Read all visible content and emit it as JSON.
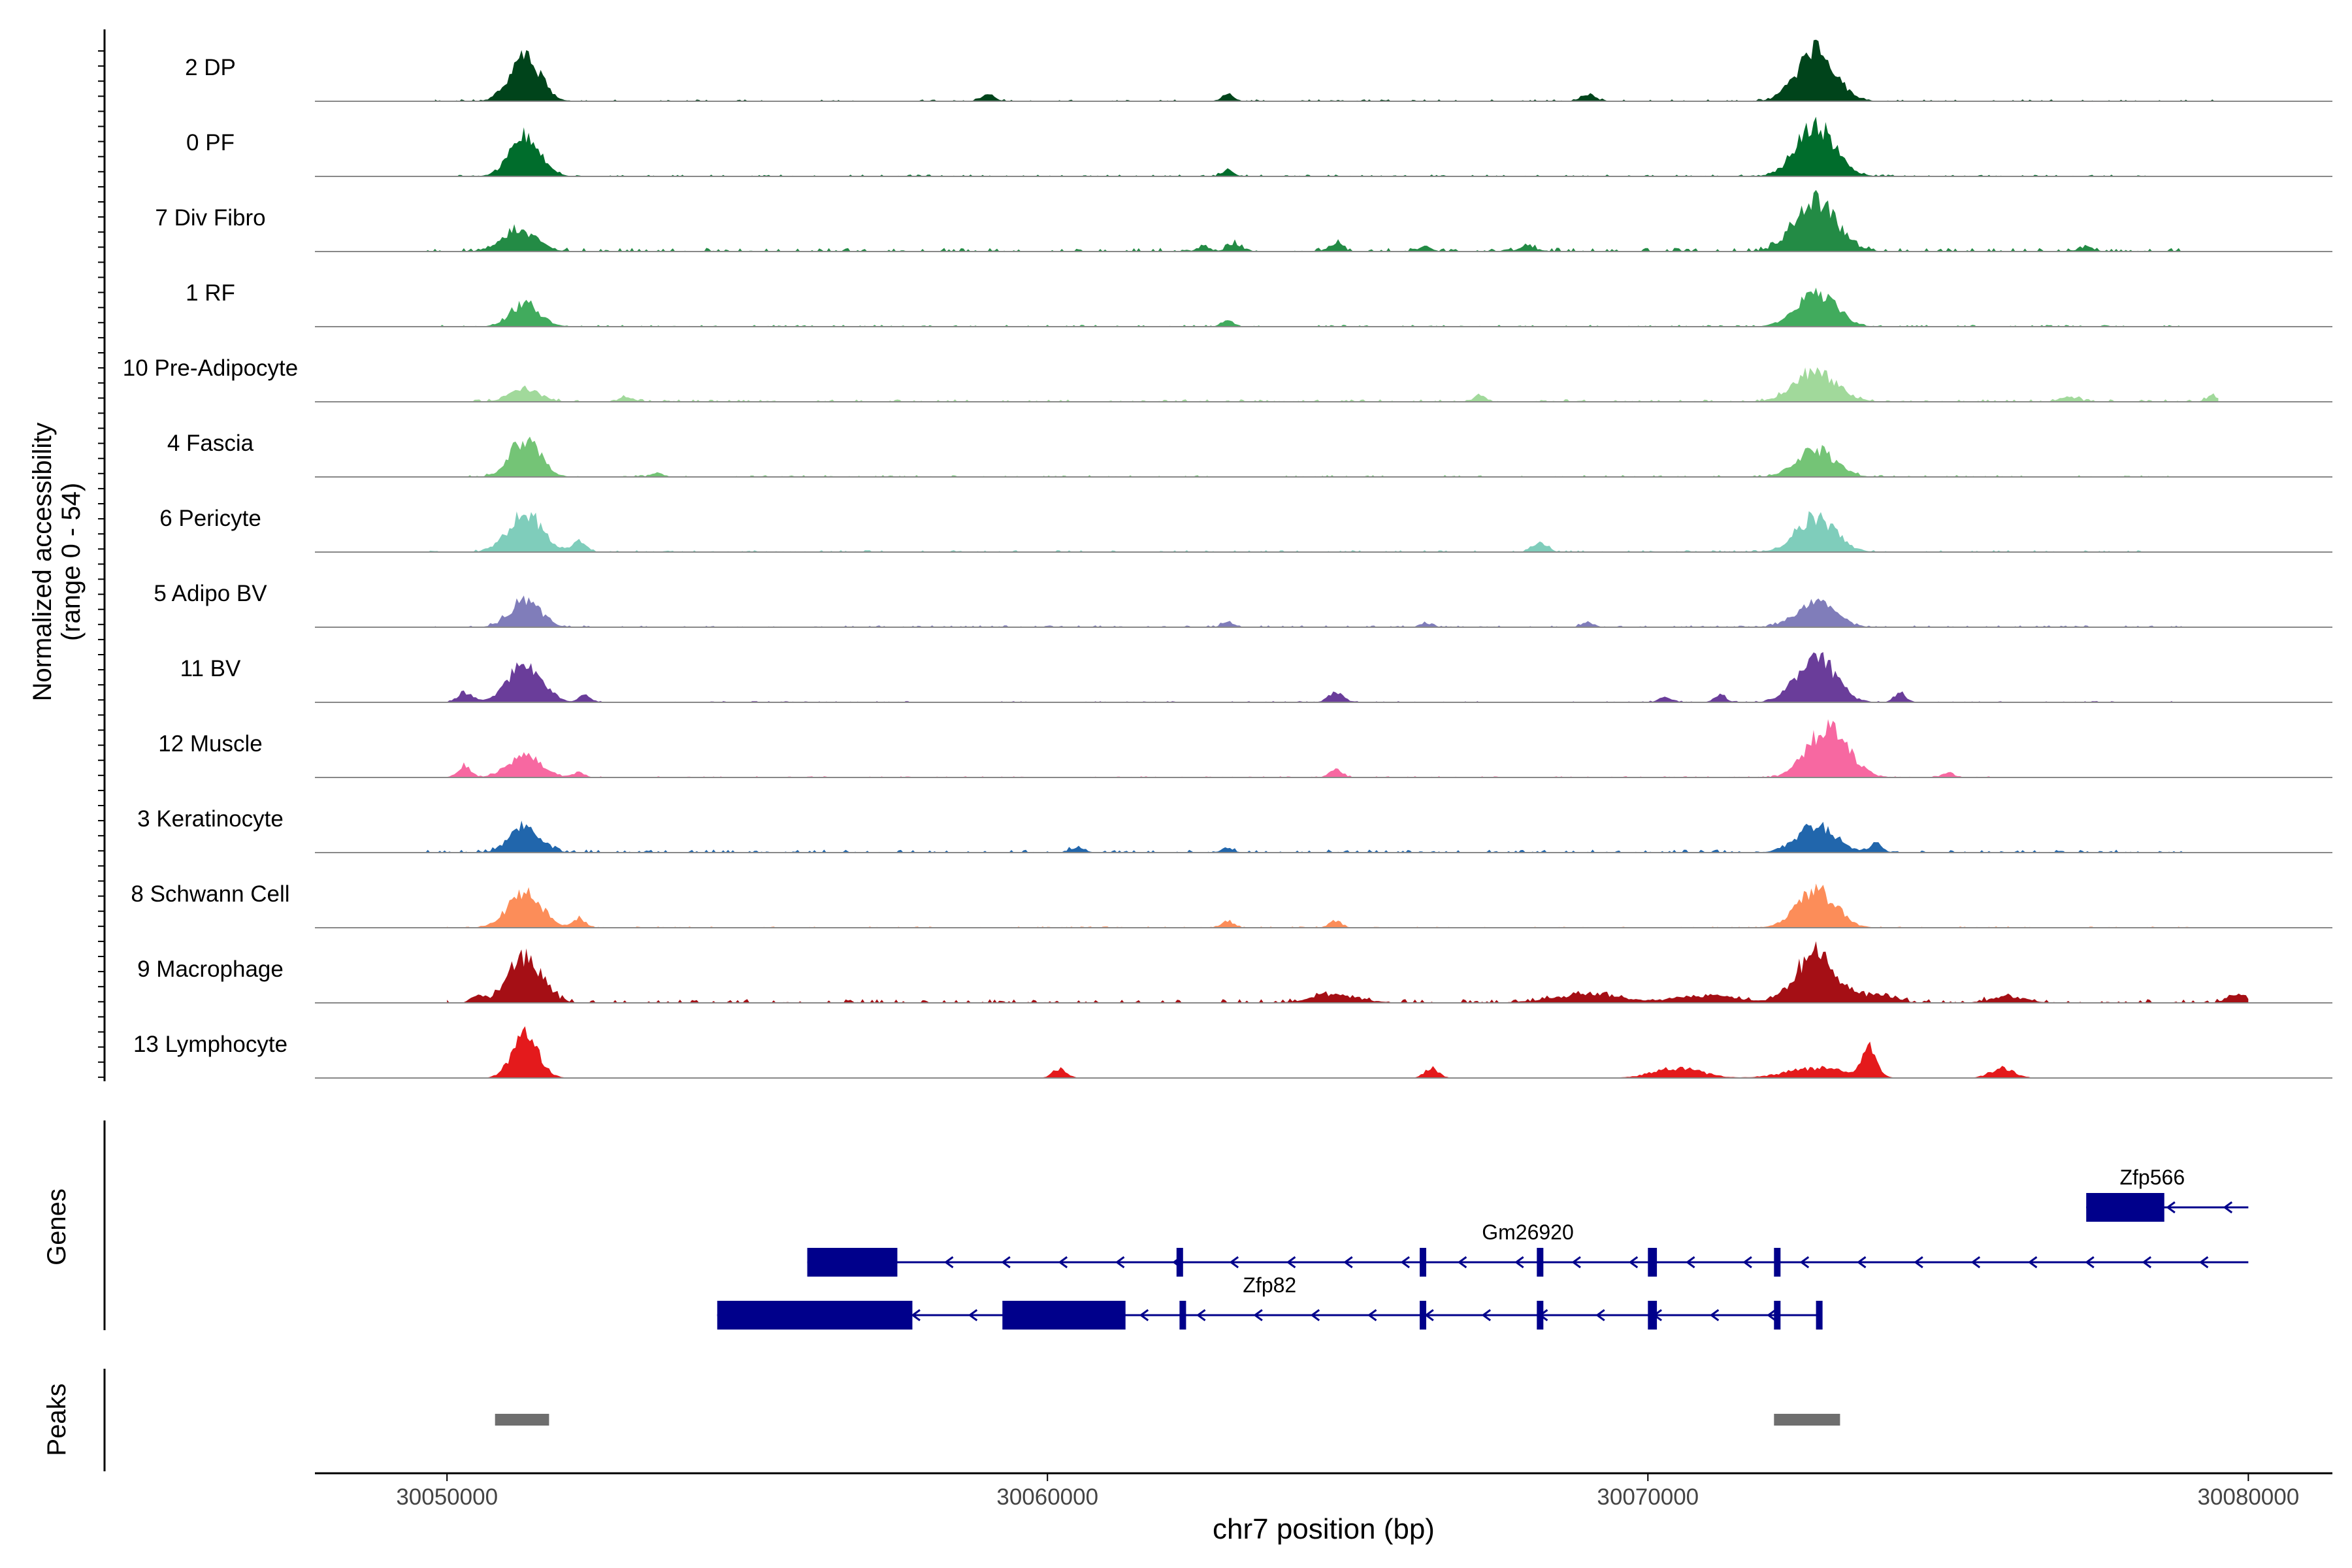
{
  "chart_data": {
    "type": "area",
    "title": "",
    "ylabel_line1": "Normalized accessibility",
    "ylabel_line2": "(range 0 - 54)",
    "genes_label": "Genes",
    "peaks_label": "Peaks",
    "xlabel": "chr7 position (bp)",
    "xlim": [
      30047800,
      30081400
    ],
    "ylim": [
      0,
      54
    ],
    "x_ticks": [
      30050000,
      30060000,
      30070000,
      30080000
    ],
    "x_tick_labels": [
      "30050000",
      "30060000",
      "30070000",
      "30080000"
    ],
    "tracks": [
      {
        "name": "2 DP",
        "color": "#00441b",
        "max": 40,
        "peaks": [
          [
            30051300,
            16,
            0.95,
            250
          ],
          [
            30072800,
            30,
            1.0,
            320
          ],
          [
            30059000,
            4,
            0.12,
            120
          ],
          [
            30063000,
            5,
            0.15,
            100
          ],
          [
            30069000,
            5,
            0.15,
            120
          ]
        ],
        "noise": 0.03,
        "extent": [
          30049800,
          30079500
        ]
      },
      {
        "name": "0 PF",
        "color": "#006d2c",
        "max": 40,
        "peaks": [
          [
            30051300,
            16,
            0.85,
            250
          ],
          [
            30072800,
            30,
            1.0,
            320
          ],
          [
            30063000,
            5,
            0.12,
            100
          ]
        ],
        "noise": 0.03,
        "extent": [
          30049800,
          30078500
        ]
      },
      {
        "name": "7 Div Fibro",
        "color": "#238b45",
        "max": 40,
        "peaks": [
          [
            30051200,
            16,
            0.45,
            280
          ],
          [
            30072800,
            33,
            1.0,
            350
          ],
          [
            30062600,
            5,
            0.12,
            100
          ],
          [
            30063100,
            6,
            0.15,
            120
          ],
          [
            30064800,
            5,
            0.17,
            120
          ],
          [
            30066300,
            4,
            0.1,
            100
          ],
          [
            30068000,
            5,
            0.1,
            150
          ],
          [
            30077300,
            4,
            0.1,
            120
          ]
        ],
        "noise": 0.06,
        "extent": [
          30049600,
          30079000
        ]
      },
      {
        "name": "1 RF",
        "color": "#41ab5d",
        "max": 40,
        "peaks": [
          [
            30051300,
            16,
            0.45,
            250
          ],
          [
            30072800,
            30,
            0.7,
            320
          ],
          [
            30063000,
            5,
            0.12,
            100
          ]
        ],
        "noise": 0.03,
        "extent": [
          30049800,
          30079000
        ]
      },
      {
        "name": "10 Pre-Adipocyte",
        "color": "#a1d99b",
        "max": 40,
        "peaks": [
          [
            30051300,
            14,
            0.25,
            250
          ],
          [
            30072800,
            33,
            0.6,
            350
          ],
          [
            30053000,
            4,
            0.1,
            120
          ],
          [
            30067200,
            4,
            0.15,
            100
          ],
          [
            30077000,
            4,
            0.1,
            150
          ],
          [
            30079400,
            3,
            0.12,
            100
          ]
        ],
        "noise": 0.04,
        "extent": [
          30050300,
          30079500
        ]
      },
      {
        "name": "4 Fascia",
        "color": "#74c476",
        "max": 40,
        "peaks": [
          [
            30051300,
            16,
            0.75,
            250
          ],
          [
            30072800,
            30,
            0.55,
            320
          ],
          [
            30053500,
            3,
            0.08,
            100
          ]
        ],
        "noise": 0.03,
        "extent": [
          30050300,
          30079000
        ]
      },
      {
        "name": "6 Pericyte",
        "color": "#7fcdbb",
        "max": 40,
        "peaks": [
          [
            30051300,
            16,
            0.75,
            280
          ],
          [
            30072800,
            30,
            0.7,
            320
          ],
          [
            30052200,
            5,
            0.2,
            120
          ],
          [
            30068200,
            5,
            0.2,
            120
          ]
        ],
        "noise": 0.03,
        "extent": [
          30049600,
          30079000
        ]
      },
      {
        "name": "5 Adipo BV",
        "color": "#807dba",
        "max": 40,
        "peaks": [
          [
            30051300,
            16,
            0.55,
            250
          ],
          [
            30072800,
            30,
            0.5,
            320
          ],
          [
            30063000,
            4,
            0.1,
            100
          ],
          [
            30069000,
            4,
            0.1,
            100
          ],
          [
            30066300,
            4,
            0.08,
            100
          ]
        ],
        "noise": 0.03,
        "extent": [
          30049800,
          30079000
        ]
      },
      {
        "name": "11 BV",
        "color": "#6a3d9a",
        "max": 40,
        "peaks": [
          [
            30051300,
            16,
            0.8,
            280
          ],
          [
            30072800,
            30,
            0.9,
            320
          ],
          [
            30050300,
            4,
            0.2,
            120
          ],
          [
            30052300,
            4,
            0.15,
            100
          ],
          [
            30064800,
            5,
            0.2,
            120
          ],
          [
            30070300,
            4,
            0.1,
            120
          ],
          [
            30071200,
            4,
            0.15,
            100
          ],
          [
            30074200,
            4,
            0.2,
            100
          ]
        ],
        "noise": 0.02,
        "extent": [
          30050000,
          30079000
        ]
      },
      {
        "name": "12 Muscle",
        "color": "#f768a1",
        "max": 40,
        "peaks": [
          [
            30051300,
            16,
            0.45,
            280
          ],
          [
            30073000,
            30,
            1.0,
            330
          ],
          [
            30050300,
            4,
            0.25,
            100
          ],
          [
            30052200,
            4,
            0.1,
            100
          ],
          [
            30064800,
            4,
            0.2,
            100
          ],
          [
            30075000,
            4,
            0.1,
            100
          ]
        ],
        "noise": 0.02,
        "extent": [
          30050000,
          30075800
        ]
      },
      {
        "name": "3 Keratinocyte",
        "color": "#2166ac",
        "max": 40,
        "peaks": [
          [
            30051300,
            16,
            0.55,
            250
          ],
          [
            30072800,
            30,
            0.55,
            320
          ],
          [
            30073800,
            4,
            0.2,
            100
          ],
          [
            30060500,
            4,
            0.1,
            120
          ],
          [
            30063000,
            4,
            0.1,
            100
          ]
        ],
        "noise": 0.05,
        "extent": [
          30049600,
          30079000
        ]
      },
      {
        "name": "8 Schwann Cell",
        "color": "#fc8d59",
        "max": 40,
        "peaks": [
          [
            30051300,
            16,
            0.7,
            280
          ],
          [
            30072800,
            30,
            0.75,
            320
          ],
          [
            30052200,
            4,
            0.2,
            100
          ],
          [
            30063000,
            4,
            0.15,
            100
          ],
          [
            30064800,
            4,
            0.15,
            100
          ]
        ],
        "noise": 0.02,
        "extent": [
          30050000,
          30079000
        ]
      },
      {
        "name": "9 Macrophage",
        "color": "#a50f15",
        "max": 40,
        "peaks": [
          [
            30051300,
            16,
            0.9,
            280
          ],
          [
            30072800,
            30,
            1.0,
            330
          ],
          [
            30050500,
            4,
            0.15,
            100
          ],
          [
            30064800,
            6,
            0.15,
            400
          ],
          [
            30069000,
            5,
            0.15,
            600
          ],
          [
            30071000,
            5,
            0.15,
            500
          ],
          [
            30073800,
            4,
            0.15,
            300
          ],
          [
            30076000,
            4,
            0.12,
            300
          ],
          [
            30079800,
            4,
            0.2,
            150
          ]
        ],
        "noise": 0.06,
        "extent": [
          30050000,
          30080000
        ]
      },
      {
        "name": "13 Lymphocyte",
        "color": "#e41a1c",
        "max": 40,
        "peaks": [
          [
            30051300,
            16,
            0.85,
            220
          ],
          [
            30073700,
            10,
            0.6,
            120
          ],
          [
            30060200,
            4,
            0.18,
            120
          ],
          [
            30066400,
            4,
            0.2,
            120
          ],
          [
            30070500,
            4,
            0.2,
            400
          ],
          [
            30072800,
            6,
            0.2,
            500
          ],
          [
            30075900,
            4,
            0.2,
            200
          ]
        ],
        "noise": 0.0,
        "extent": [
          30050500,
          30077000
        ]
      }
    ],
    "genes": [
      {
        "name": "Zfp566",
        "row": 0,
        "start": 30077300,
        "end": 30080000,
        "strand": "-",
        "exons": [
          [
            30077300,
            30078600
          ]
        ],
        "label_x": 30078400
      },
      {
        "name": "Gm26920",
        "row": 1,
        "start": 30056000,
        "end": 30080000,
        "strand": "-",
        "exons": [
          [
            30056000,
            30057500
          ],
          [
            30062150,
            30062250
          ],
          [
            30066200,
            30066300
          ],
          [
            30068150,
            30068250
          ],
          [
            30070000,
            30070150
          ],
          [
            30072100,
            30072200
          ]
        ],
        "label_x": 30068000
      },
      {
        "name": "Zfp82",
        "row": 2,
        "start": 30054500,
        "end": 30072900,
        "strand": "-",
        "exons": [
          [
            30054500,
            30057750
          ],
          [
            30059250,
            30061300
          ],
          [
            30062200,
            30062300
          ],
          [
            30066200,
            30066300
          ],
          [
            30068150,
            30068250
          ],
          [
            30070000,
            30070150
          ],
          [
            30072100,
            30072200
          ],
          [
            30072800,
            30072900
          ]
        ],
        "label_x": 30063700
      }
    ],
    "peaks": [
      {
        "start": 30050800,
        "end": 30051700
      },
      {
        "start": 30072100,
        "end": 30073200
      }
    ]
  }
}
